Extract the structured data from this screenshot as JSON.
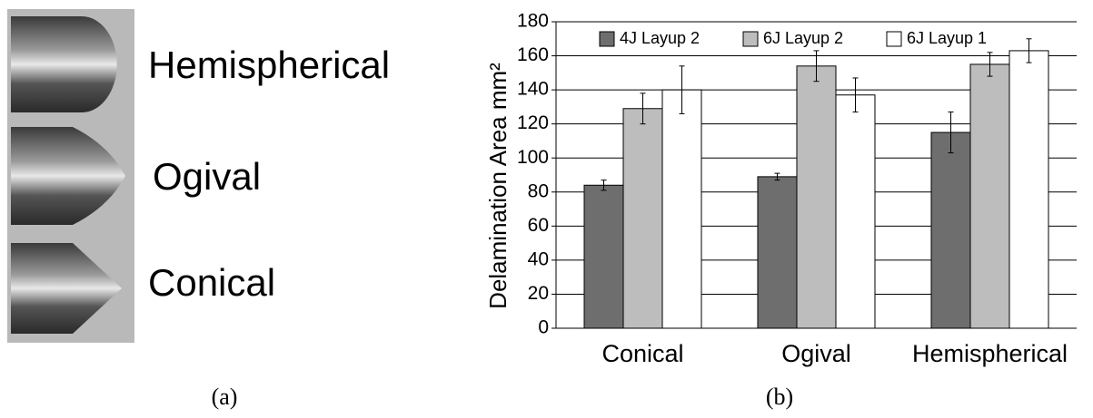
{
  "photo": {
    "labels": [
      "Hemispherical",
      "Ogival",
      "Conical"
    ],
    "caption": "(a)"
  },
  "chart_data": {
    "type": "bar",
    "caption": "(b)",
    "y_label": "Delamination Area mm²",
    "categories": [
      "Conical",
      "Ogival",
      "Hemispherical"
    ],
    "series": [
      {
        "name": "4J Layup 2",
        "color": "#6e6e6e",
        "values": [
          84,
          89,
          115
        ],
        "errors": [
          3,
          2,
          12
        ]
      },
      {
        "name": "6J Layup 2",
        "color": "#bdbdbd",
        "values": [
          129,
          154,
          155
        ],
        "errors": [
          9,
          9,
          7
        ]
      },
      {
        "name": "6J Layup 1",
        "color": "#ffffff",
        "values": [
          140,
          137,
          163
        ],
        "errors": [
          14,
          10,
          7
        ]
      }
    ],
    "ylim": [
      0,
      180
    ],
    "yticks": [
      0,
      20,
      40,
      60,
      80,
      100,
      120,
      140,
      160,
      180
    ],
    "grid": true,
    "legend": "top"
  }
}
